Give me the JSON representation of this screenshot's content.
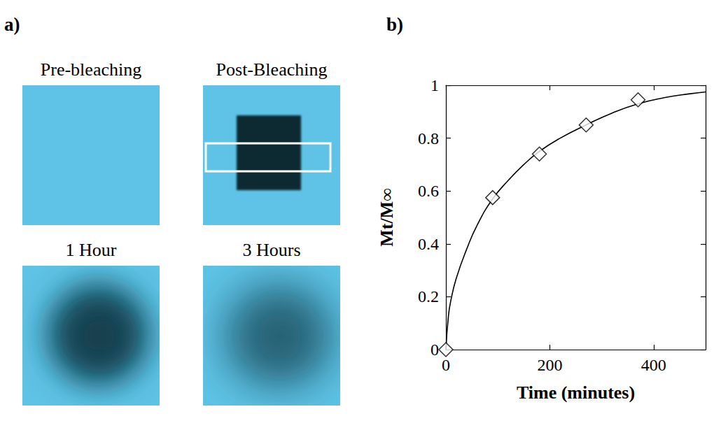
{
  "panel_a": {
    "panel_label": "a)",
    "images": [
      {
        "caption": "Pre-bleaching"
      },
      {
        "caption": "Post-Bleaching"
      },
      {
        "caption": "1 Hour"
      },
      {
        "caption": "3 Hours"
      }
    ]
  },
  "chart_data": {
    "panel_label": "b)",
    "type": "scatter",
    "xlabel": "Time (minutes)",
    "ylabel": "Mt/M∞",
    "xlim": [
      0,
      500
    ],
    "xticks": [
      0,
      200,
      400
    ],
    "ylim": [
      0,
      1
    ],
    "yticks": [
      0,
      0.2,
      0.4,
      0.6,
      0.8,
      1
    ],
    "grid": false,
    "series": [
      {
        "type": "scatter",
        "marker": "diamond",
        "color": "#000000",
        "x": [
          0,
          90,
          180,
          270,
          370
        ],
        "values": [
          0,
          0.575,
          0.74,
          0.85,
          0.945
        ]
      },
      {
        "type": "line",
        "line_style": "solid",
        "color": "#000000",
        "x": [
          0,
          5,
          10,
          20,
          40,
          60,
          90,
          120,
          150,
          180,
          220,
          270,
          320,
          370,
          420,
          470,
          500
        ],
        "values": [
          0,
          0.13,
          0.19,
          0.27,
          0.38,
          0.47,
          0.57,
          0.64,
          0.7,
          0.75,
          0.8,
          0.85,
          0.895,
          0.93,
          0.953,
          0.968,
          0.975
        ]
      }
    ]
  }
}
